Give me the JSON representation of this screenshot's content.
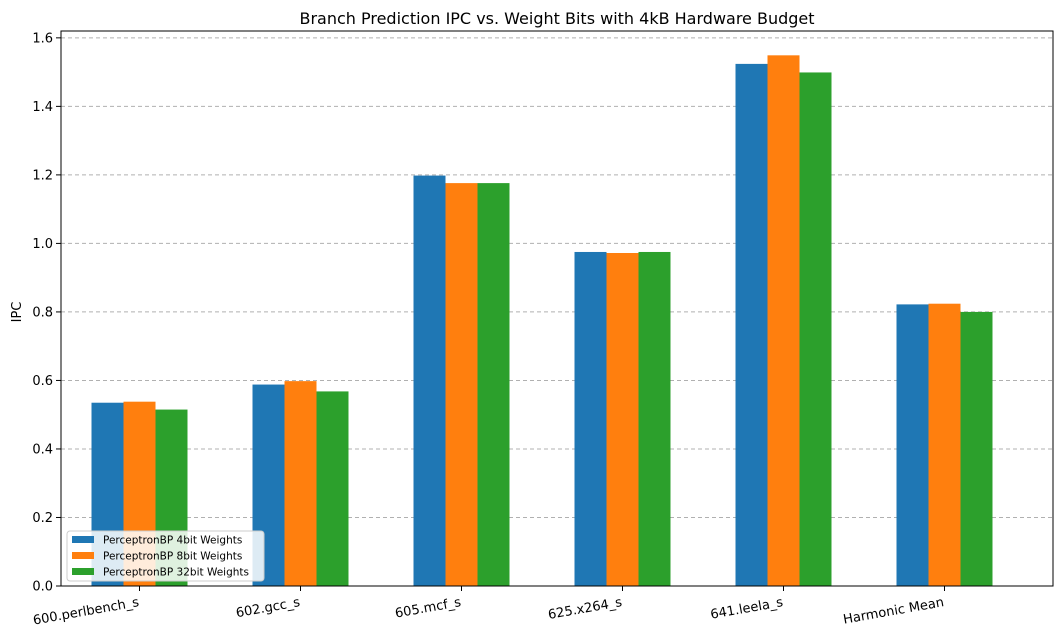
{
  "chart_data": {
    "type": "bar",
    "title": "Branch Prediction IPC vs. Weight Bits with 4kB Hardware Budget",
    "xlabel": "",
    "ylabel": "IPC",
    "ylim": [
      0,
      1.62
    ],
    "yticks": [
      "0.0",
      "0.2",
      "0.4",
      "0.6",
      "0.8",
      "1.0",
      "1.2",
      "1.4",
      "1.6"
    ],
    "grid": "horizontal dashed",
    "legend_position": "lower-left",
    "categories": [
      "600.perlbench_s",
      "602.gcc_s",
      "605.mcf_s",
      "625.x264_s",
      "641.leela_s",
      "Harmonic Mean"
    ],
    "series": [
      {
        "name": "PerceptronBP 4bit Weights",
        "color": "#1f77b4",
        "values": [
          0.535,
          0.588,
          1.198,
          0.975,
          1.524,
          0.822
        ]
      },
      {
        "name": "PerceptronBP 8bit Weights",
        "color": "#ff7f0e",
        "values": [
          0.538,
          0.598,
          1.176,
          0.972,
          1.549,
          0.824
        ]
      },
      {
        "name": "PerceptronBP 32bit Weights",
        "color": "#2ca02c",
        "values": [
          0.515,
          0.568,
          1.176,
          0.975,
          1.499,
          0.8
        ]
      }
    ]
  }
}
